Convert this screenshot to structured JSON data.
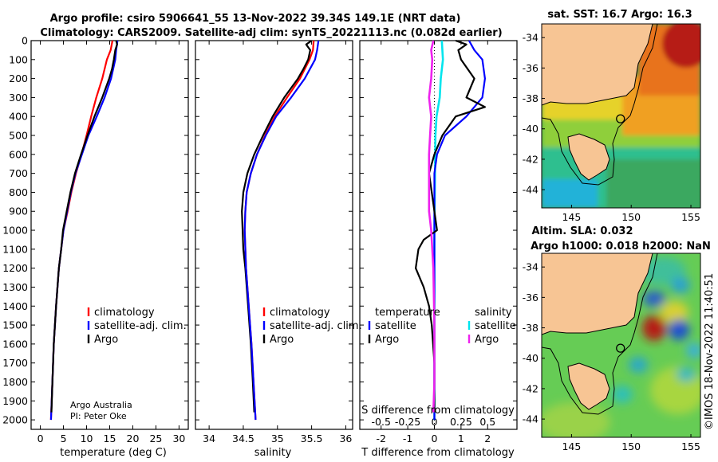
{
  "header": {
    "title_line1": "Argo profile: csiro 5906641_55 13-Nov-2022 39.34S 149.1E (NRT data)",
    "title_line2": "Climatology: CARS2009. Satellite-adj clim: synTS_20221113.nc (0.082d earlier)"
  },
  "credit": {
    "line1": "Argo Australia",
    "line2": "PI: Peter Oke"
  },
  "watermark": "©IMOS 18-Nov-2022 11:40:51",
  "colors": {
    "climatology": "#ff0000",
    "satellite": "#0000ff",
    "argo": "#000000",
    "sat_salinity": "#00e5ee",
    "argo_salinity": "#ee22ee"
  },
  "chart_data": [
    {
      "id": "temperature",
      "type": "line",
      "xlabel": "temperature (deg C)",
      "ylabel": "",
      "xlim": [
        -2,
        32
      ],
      "ylim": [
        2050,
        0
      ],
      "xticks": [
        0,
        5,
        10,
        15,
        20,
        25,
        30
      ],
      "yticks": [
        0,
        100,
        200,
        300,
        400,
        500,
        600,
        700,
        800,
        900,
        1000,
        1100,
        1200,
        1300,
        1400,
        1500,
        1600,
        1700,
        1800,
        1900,
        2000
      ],
      "legend": [
        "climatology",
        "satellite-adj. clim.",
        "Argo"
      ],
      "series": [
        {
          "name": "climatology",
          "depth": [
            0,
            50,
            100,
            200,
            300,
            400,
            500,
            600,
            700,
            800,
            900,
            1000,
            1200,
            1400,
            1600,
            1800,
            2000
          ],
          "values": [
            15.6,
            15.2,
            14.4,
            13.4,
            12.1,
            11.0,
            10.0,
            8.9,
            7.7,
            6.7,
            5.9,
            5.0,
            4.0,
            3.4,
            2.9,
            2.6,
            2.3
          ]
        },
        {
          "name": "satellite-adj. clim.",
          "depth": [
            0,
            50,
            100,
            200,
            300,
            400,
            500,
            600,
            700,
            800,
            900,
            1000,
            1200,
            1400,
            1600,
            1800,
            2000
          ],
          "values": [
            16.7,
            16.4,
            16.2,
            15.3,
            13.9,
            12.2,
            10.4,
            9.0,
            7.6,
            6.6,
            5.8,
            5.0,
            4.0,
            3.4,
            2.9,
            2.6,
            2.3
          ]
        },
        {
          "name": "Argo",
          "depth": [
            0,
            20,
            50,
            100,
            150,
            200,
            300,
            400,
            500,
            600,
            700,
            800,
            900,
            1000,
            1100,
            1200,
            1400,
            1600,
            1800,
            1960
          ],
          "values": [
            16.4,
            16.6,
            16.2,
            15.9,
            15.5,
            14.9,
            13.4,
            11.7,
            10.2,
            8.8,
            7.5,
            6.5,
            5.7,
            4.9,
            4.5,
            4.0,
            3.4,
            2.9,
            2.6,
            2.4
          ]
        }
      ]
    },
    {
      "id": "salinity",
      "type": "line",
      "xlabel": "salinity",
      "ylabel": "",
      "xlim": [
        33.8,
        36.1
      ],
      "ylim": [
        2050,
        0
      ],
      "xticks": [
        34,
        34.5,
        35,
        35.5,
        36
      ],
      "legend": [
        "climatology",
        "satellite-adj. clim.",
        "Argo"
      ],
      "series": [
        {
          "name": "climatology",
          "depth": [
            0,
            50,
            100,
            200,
            300,
            400,
            500,
            600,
            700,
            800,
            900,
            1000,
            1200,
            1400,
            1600,
            1800,
            2000
          ],
          "values": [
            35.53,
            35.52,
            35.47,
            35.33,
            35.14,
            34.96,
            34.82,
            34.7,
            34.61,
            34.55,
            34.53,
            34.52,
            34.54,
            34.58,
            34.62,
            34.65,
            34.68
          ]
        },
        {
          "name": "satellite-adj. clim.",
          "depth": [
            0,
            50,
            100,
            200,
            300,
            400,
            500,
            600,
            700,
            800,
            900,
            1000,
            1200,
            1400,
            1600,
            1800,
            2000
          ],
          "values": [
            35.6,
            35.58,
            35.55,
            35.4,
            35.2,
            34.98,
            34.83,
            34.7,
            34.61,
            34.55,
            34.53,
            34.52,
            34.54,
            34.58,
            34.62,
            34.65,
            34.68
          ]
        },
        {
          "name": "Argo",
          "depth": [
            0,
            20,
            50,
            100,
            150,
            200,
            300,
            400,
            500,
            600,
            700,
            800,
            900,
            1000,
            1100,
            1200,
            1400,
            1600,
            1800,
            1960
          ],
          "values": [
            35.5,
            35.42,
            35.48,
            35.45,
            35.38,
            35.3,
            35.1,
            34.93,
            34.79,
            34.66,
            34.56,
            34.5,
            34.48,
            34.49,
            34.5,
            34.53,
            34.57,
            34.61,
            34.64,
            34.66
          ]
        }
      ]
    },
    {
      "id": "difference",
      "type": "line",
      "xlabel": "T difference from climatology",
      "xlabel_top": "S difference from climatology",
      "xlim": [
        -2.8,
        3.1
      ],
      "ylim": [
        2050,
        0
      ],
      "xticks": [
        -2,
        -1,
        0,
        1,
        2
      ],
      "xticks_labels": [
        "-2",
        "-1",
        "0",
        "1",
        "2"
      ],
      "s_ticks": [
        -0.5,
        -0.25,
        0,
        0.25,
        0.5
      ],
      "s_ticks_labels": [
        "-0.5",
        "-0.25",
        "0",
        "0.25",
        "0.5"
      ],
      "legend_t_title": "temperature",
      "legend_s_title": "salinity",
      "legend": [
        "satellite",
        "Argo",
        "satellite",
        "Argo"
      ],
      "series": [
        {
          "name": "T satellite",
          "depth": [
            0,
            50,
            100,
            200,
            300,
            400,
            500,
            600,
            700,
            800,
            900,
            1000,
            1200,
            1600,
            2000
          ],
          "values": [
            1.3,
            1.5,
            1.8,
            1.9,
            1.8,
            1.2,
            0.4,
            0.1,
            0,
            0,
            0,
            0,
            0,
            0,
            0
          ]
        },
        {
          "name": "T Argo",
          "depth": [
            0,
            20,
            50,
            100,
            200,
            300,
            350,
            400,
            500,
            600,
            700,
            800,
            900,
            1000,
            1050,
            1100,
            1200,
            1300,
            1400,
            1500,
            1700,
            1960
          ],
          "values": [
            0.8,
            1.2,
            0.9,
            1.0,
            1.5,
            1.2,
            1.9,
            0.8,
            0.3,
            0,
            -0.2,
            -0.1,
            0,
            0.1,
            -0.4,
            -0.6,
            -0.7,
            -0.4,
            -0.2,
            -0.1,
            0,
            0
          ]
        },
        {
          "name": "S satellite",
          "depth": [
            0,
            100,
            200,
            300,
            400,
            500,
            1000,
            1500,
            2000
          ],
          "values": [
            0.07,
            0.08,
            0.06,
            0.05,
            0.02,
            0.01,
            0,
            0,
            0
          ]
        },
        {
          "name": "S Argo",
          "depth": [
            0,
            50,
            100,
            200,
            300,
            400,
            500,
            600,
            700,
            800,
            900,
            1000,
            1200,
            1500,
            1800,
            1960
          ],
          "values": [
            -0.01,
            -0.03,
            -0.02,
            -0.03,
            -0.05,
            -0.03,
            -0.04,
            -0.05,
            -0.05,
            -0.05,
            -0.05,
            -0.03,
            -0.01,
            0,
            0,
            -0.01
          ]
        }
      ]
    },
    {
      "id": "sst_map",
      "type": "heatmap",
      "title": "sat. SST: 16.7 Argo: 16.3",
      "xlim": [
        142.5,
        155.8
      ],
      "ylim": [
        -45.2,
        -33.1
      ],
      "xticks": [
        145,
        150,
        155
      ],
      "yticks": [
        -34,
        -36,
        -38,
        -40,
        -42,
        -44
      ],
      "yticks_labels": [
        "-34",
        "-36",
        "-38",
        "-40",
        "-42",
        "-44"
      ],
      "marker": [
        149.1,
        -39.34
      ]
    },
    {
      "id": "sla_map",
      "type": "heatmap",
      "title_line1": "Altim. SLA: 0.032",
      "title_line2": "Argo h1000: 0.018 h2000: NaN",
      "xlim": [
        142.5,
        155.8
      ],
      "ylim": [
        -45.2,
        -33.1
      ],
      "xticks": [
        145,
        150,
        155
      ],
      "yticks": [
        -34,
        -36,
        -38,
        -40,
        -42,
        -44
      ],
      "yticks_labels": [
        "-34",
        "-36",
        "-38",
        "-40",
        "-42",
        "-44"
      ],
      "marker": [
        149.1,
        -39.34
      ]
    }
  ]
}
